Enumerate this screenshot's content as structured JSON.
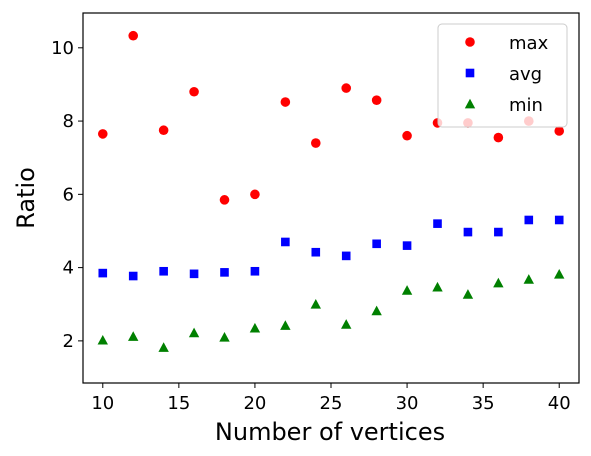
{
  "chart_data": {
    "type": "scatter",
    "title": "",
    "xlabel": "Number of vertices",
    "ylabel": "Ratio",
    "xlim": [
      8.7,
      41.3
    ],
    "ylim": [
      0.85,
      10.95
    ],
    "xticks": [
      10,
      15,
      20,
      25,
      30,
      35,
      40
    ],
    "yticks": [
      2,
      4,
      6,
      8,
      10
    ],
    "grid": false,
    "legend_position": "upper right",
    "x": [
      10,
      12,
      14,
      16,
      18,
      20,
      22,
      24,
      26,
      28,
      30,
      32,
      34,
      36,
      38,
      40
    ],
    "series": [
      {
        "name": "max",
        "marker": "circle",
        "color": "#ff0000",
        "values": [
          7.65,
          10.33,
          7.75,
          8.8,
          5.85,
          6.0,
          8.52,
          7.4,
          8.9,
          8.57,
          7.6,
          7.95,
          7.95,
          7.55,
          8.0,
          7.73
        ]
      },
      {
        "name": "avg",
        "marker": "square",
        "color": "#0000ff",
        "values": [
          3.85,
          3.77,
          3.9,
          3.83,
          3.87,
          3.9,
          4.7,
          4.42,
          4.32,
          4.65,
          4.6,
          5.2,
          4.97,
          4.97,
          5.3,
          5.3
        ]
      },
      {
        "name": "min",
        "marker": "triangle",
        "color": "#008000",
        "values": [
          2.02,
          2.12,
          1.82,
          2.22,
          2.1,
          2.35,
          2.42,
          3.0,
          2.45,
          2.82,
          3.38,
          3.47,
          3.27,
          3.58,
          3.68,
          3.82
        ]
      }
    ]
  }
}
